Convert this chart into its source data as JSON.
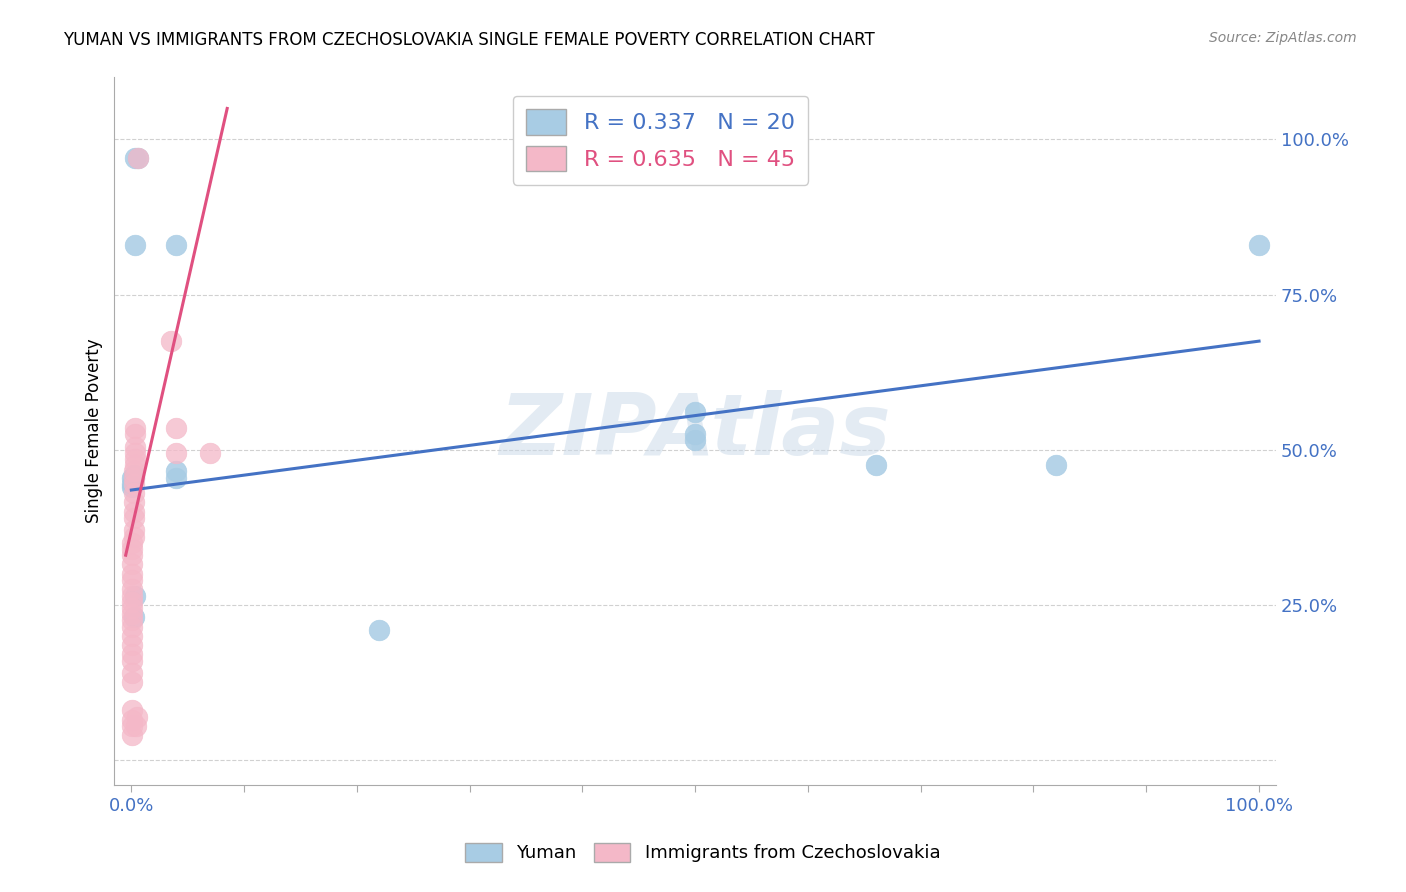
{
  "title": "YUMAN VS IMMIGRANTS FROM CZECHOSLOVAKIA SINGLE FEMALE POVERTY CORRELATION CHART",
  "source": "Source: ZipAtlas.com",
  "ylabel": "Single Female Poverty",
  "yuman_label": "Yuman",
  "czech_label": "Immigrants from Czechoslovakia",
  "legend_blue_r": "R = 0.337",
  "legend_blue_n": "N = 20",
  "legend_pink_r": "R = 0.635",
  "legend_pink_n": "N = 45",
  "watermark": "ZIPAtlas",
  "blue_color": "#a8cce4",
  "pink_color": "#f4b8c8",
  "blue_line_color": "#4472c4",
  "pink_line_color": "#e05080",
  "blue_scatter": [
    [
      0.003,
      0.97
    ],
    [
      0.006,
      0.97
    ],
    [
      0.003,
      0.83
    ],
    [
      0.001,
      0.44
    ],
    [
      0.001,
      0.455
    ],
    [
      0.002,
      0.46
    ],
    [
      0.002,
      0.455
    ],
    [
      0.001,
      0.445
    ],
    [
      0.002,
      0.23
    ],
    [
      0.003,
      0.265
    ],
    [
      0.04,
      0.83
    ],
    [
      0.04,
      0.455
    ],
    [
      0.04,
      0.465
    ],
    [
      0.22,
      0.21
    ],
    [
      0.5,
      0.515
    ],
    [
      0.5,
      0.525
    ],
    [
      0.5,
      0.56
    ],
    [
      0.66,
      0.475
    ],
    [
      0.82,
      0.475
    ],
    [
      1.0,
      0.83
    ]
  ],
  "pink_scatter": [
    [
      0.006,
      0.97
    ],
    [
      0.003,
      0.535
    ],
    [
      0.003,
      0.525
    ],
    [
      0.003,
      0.505
    ],
    [
      0.003,
      0.495
    ],
    [
      0.003,
      0.485
    ],
    [
      0.003,
      0.475
    ],
    [
      0.002,
      0.465
    ],
    [
      0.002,
      0.455
    ],
    [
      0.002,
      0.445
    ],
    [
      0.002,
      0.43
    ],
    [
      0.002,
      0.415
    ],
    [
      0.002,
      0.4
    ],
    [
      0.002,
      0.39
    ],
    [
      0.002,
      0.37
    ],
    [
      0.002,
      0.36
    ],
    [
      0.001,
      0.35
    ],
    [
      0.001,
      0.34
    ],
    [
      0.001,
      0.33
    ],
    [
      0.001,
      0.315
    ],
    [
      0.001,
      0.3
    ],
    [
      0.001,
      0.29
    ],
    [
      0.001,
      0.275
    ],
    [
      0.001,
      0.265
    ],
    [
      0.001,
      0.255
    ],
    [
      0.001,
      0.245
    ],
    [
      0.001,
      0.235
    ],
    [
      0.001,
      0.225
    ],
    [
      0.001,
      0.215
    ],
    [
      0.001,
      0.2
    ],
    [
      0.001,
      0.185
    ],
    [
      0.001,
      0.17
    ],
    [
      0.001,
      0.16
    ],
    [
      0.001,
      0.14
    ],
    [
      0.001,
      0.125
    ],
    [
      0.001,
      0.08
    ],
    [
      0.001,
      0.065
    ],
    [
      0.001,
      0.055
    ],
    [
      0.001,
      0.04
    ],
    [
      0.04,
      0.535
    ],
    [
      0.04,
      0.495
    ],
    [
      0.035,
      0.675
    ],
    [
      0.07,
      0.495
    ],
    [
      0.004,
      0.055
    ],
    [
      0.005,
      0.07
    ]
  ],
  "blue_trend_x": [
    0.0,
    1.0
  ],
  "blue_trend_y": [
    0.435,
    0.675
  ],
  "pink_trend_x": [
    -0.005,
    0.085
  ],
  "pink_trend_y": [
    0.33,
    1.05
  ],
  "xlim": [
    -0.015,
    1.015
  ],
  "ylim": [
    -0.04,
    1.1
  ],
  "xtick_positions": [
    0.0,
    0.1,
    0.2,
    0.3,
    0.4,
    0.5,
    0.6,
    0.7,
    0.8,
    0.9,
    1.0
  ],
  "ytick_positions": [
    0.0,
    0.25,
    0.5,
    0.75,
    1.0
  ],
  "ytick_labels": [
    "",
    "25.0%",
    "50.0%",
    "75.0%",
    "100.0%"
  ]
}
